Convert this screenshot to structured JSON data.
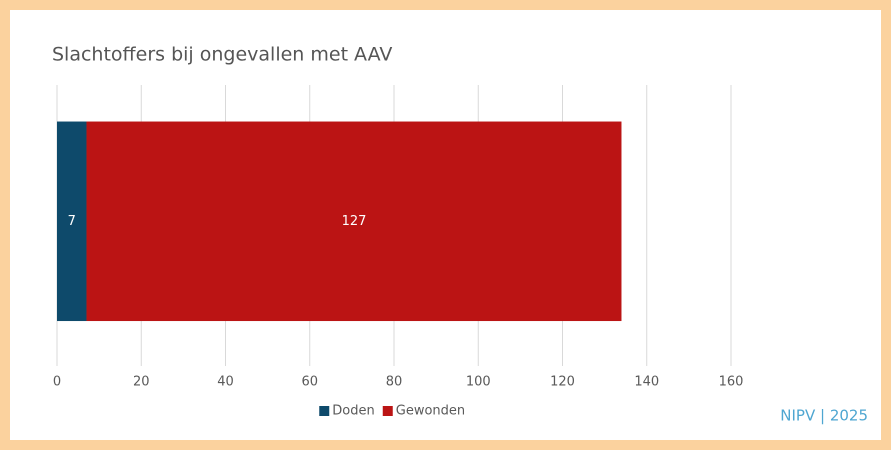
{
  "chart_data": {
    "type": "stacked-barh",
    "title": "Slachtoffers bij ongevallen met AAV",
    "categories": [
      null
    ],
    "series": [
      {
        "name": "Doden",
        "color": "#0e4a6b",
        "values": [
          7
        ]
      },
      {
        "name": "Gewonden",
        "color": "#bb1414",
        "values": [
          127
        ]
      }
    ],
    "xlim": [
      0,
      160
    ],
    "xticks": [
      0,
      20,
      40,
      60,
      80,
      100,
      120,
      140,
      160
    ],
    "grid": true,
    "legend": "bottom",
    "source": "NIPV | 2025"
  }
}
